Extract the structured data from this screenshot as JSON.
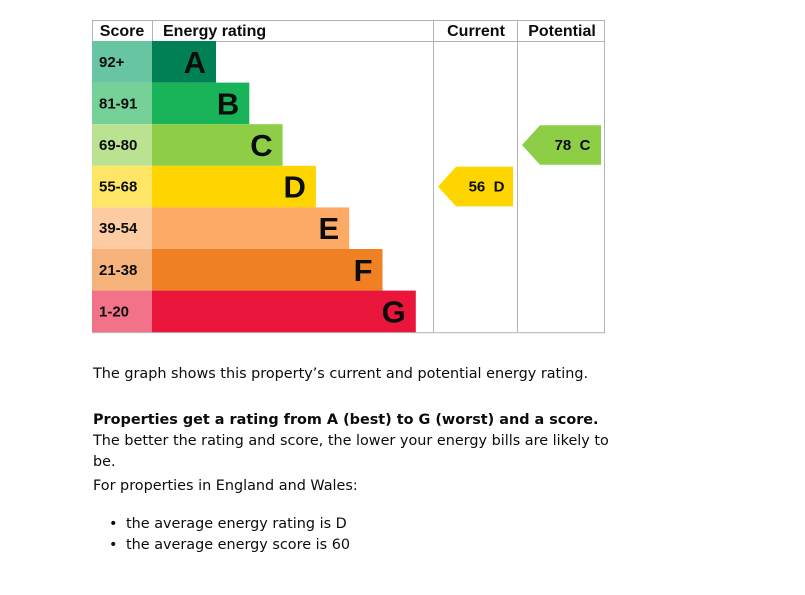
{
  "chart_data": {
    "type": "bar",
    "headers": {
      "score": "Score",
      "rating": "Energy rating",
      "current": "Current",
      "potential": "Potential"
    },
    "bands": [
      {
        "range": "92+",
        "letter": "A",
        "color": "#008054",
        "score_color": "#67c6a1"
      },
      {
        "range": "81-91",
        "letter": "B",
        "color": "#19b459",
        "score_color": "#75d198"
      },
      {
        "range": "69-80",
        "letter": "C",
        "color": "#8dce46",
        "score_color": "#bbe290"
      },
      {
        "range": "55-68",
        "letter": "D",
        "color": "#ffd500",
        "score_color": "#ffe666"
      },
      {
        "range": "39-54",
        "letter": "E",
        "color": "#fcaa65",
        "score_color": "#fdcca3"
      },
      {
        "range": "21-38",
        "letter": "F",
        "color": "#ef8023",
        "score_color": "#f5b37b"
      },
      {
        "range": "1-20",
        "letter": "G",
        "color": "#e9153b",
        "score_color": "#f27389"
      }
    ],
    "current": {
      "score": 56,
      "band": "D",
      "label": "56  D",
      "color": "#ffd500"
    },
    "potential": {
      "score": 78,
      "band": "C",
      "label": "78  C",
      "color": "#8dce46"
    }
  },
  "text": {
    "intro": "The graph shows this property’s current and potential energy rating.",
    "rating_bold": "Properties get a rating from A (best) to G (worst) and a score.",
    "rating_rest": " The better the rating and score, the lower your energy bills are likely to be.",
    "region": "For properties in England and Wales:",
    "averages": [
      "the average energy rating is D",
      "the average energy score is 60"
    ]
  }
}
